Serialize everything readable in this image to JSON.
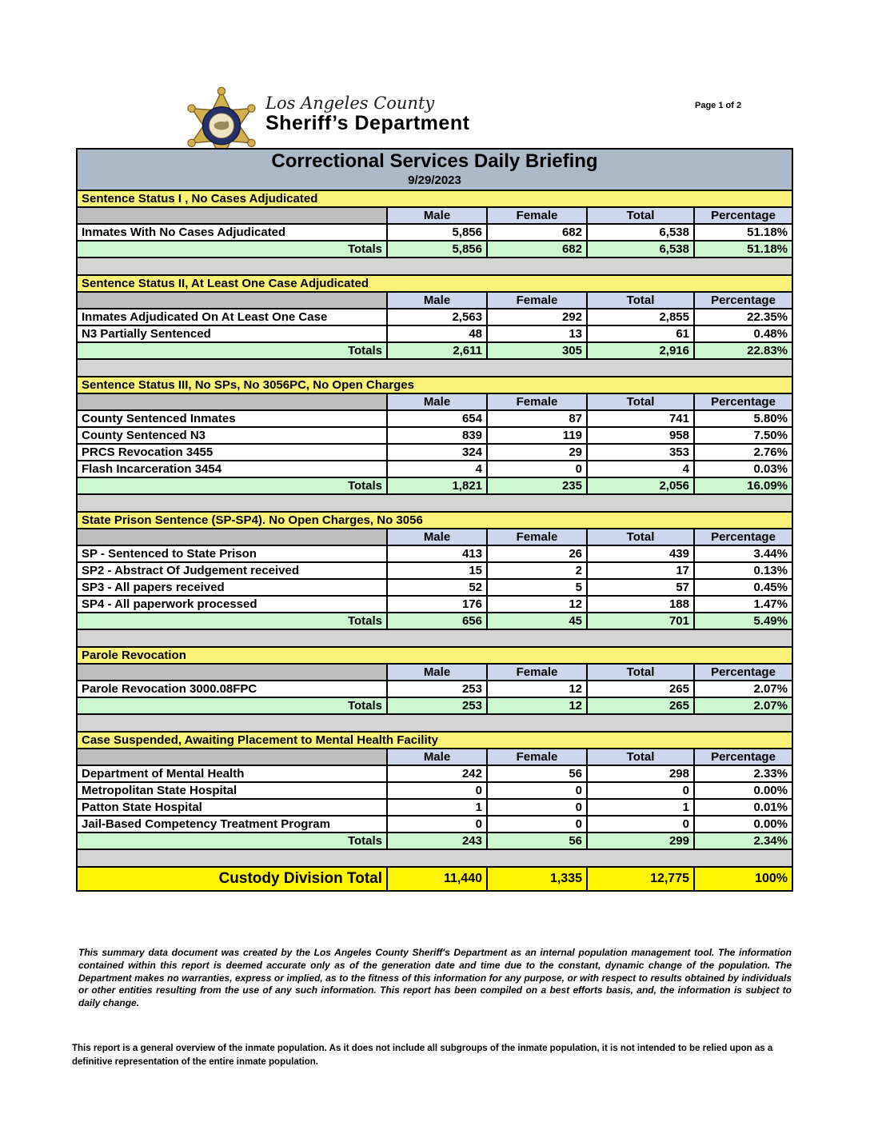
{
  "page": {
    "page_label": "Page 1 of 2"
  },
  "logo": {
    "line1": "Los Angeles County",
    "line2": "Sheriff’s Department",
    "icon": "sheriff-star-badge"
  },
  "report": {
    "title": "Correctional Services Daily Briefing",
    "date": "9/29/2023"
  },
  "columns": [
    "Male",
    "Female",
    "Total",
    "Percentage"
  ],
  "sections": [
    {
      "title": "Sentence Status I , No Cases Adjudicated",
      "rows": [
        {
          "label": "Inmates With No Cases Adjudicated",
          "values": [
            "5,856",
            "682",
            "6,538",
            "51.18%"
          ]
        }
      ],
      "totals": {
        "label": "Totals",
        "values": [
          "5,856",
          "682",
          "6,538",
          "51.18%"
        ]
      }
    },
    {
      "title": "Sentence Status II, At Least One Case Adjudicated",
      "rows": [
        {
          "label": "Inmates Adjudicated On At Least One Case",
          "values": [
            "2,563",
            "292",
            "2,855",
            "22.35%"
          ]
        },
        {
          "label": "N3 Partially Sentenced",
          "values": [
            "48",
            "13",
            "61",
            "0.48%"
          ]
        }
      ],
      "totals": {
        "label": "Totals",
        "values": [
          "2,611",
          "305",
          "2,916",
          "22.83%"
        ]
      }
    },
    {
      "title": "Sentence Status III, No SPs, No 3056PC, No Open Charges",
      "rows": [
        {
          "label": "County Sentenced Inmates",
          "values": [
            "654",
            "87",
            "741",
            "5.80%"
          ]
        },
        {
          "label": "County Sentenced N3",
          "values": [
            "839",
            "119",
            "958",
            "7.50%"
          ]
        },
        {
          "label": "PRCS Revocation 3455",
          "values": [
            "324",
            "29",
            "353",
            "2.76%"
          ]
        },
        {
          "label": "Flash Incarceration 3454",
          "values": [
            "4",
            "0",
            "4",
            "0.03%"
          ]
        }
      ],
      "totals": {
        "label": "Totals",
        "values": [
          "1,821",
          "235",
          "2,056",
          "16.09%"
        ]
      }
    },
    {
      "title": "State Prison Sentence (SP-SP4). No Open Charges, No 3056",
      "rows": [
        {
          "label": "SP - Sentenced to State Prison",
          "values": [
            "413",
            "26",
            "439",
            "3.44%"
          ]
        },
        {
          "label": "SP2 - Abstract Of Judgement received",
          "values": [
            "15",
            "2",
            "17",
            "0.13%"
          ]
        },
        {
          "label": "SP3 - All papers received",
          "values": [
            "52",
            "5",
            "57",
            "0.45%"
          ]
        },
        {
          "label": "SP4 - All paperwork processed",
          "values": [
            "176",
            "12",
            "188",
            "1.47%"
          ]
        }
      ],
      "totals": {
        "label": "Totals",
        "values": [
          "656",
          "45",
          "701",
          "5.49%"
        ]
      }
    },
    {
      "title": "Parole Revocation",
      "rows": [
        {
          "label": "Parole Revocation 3000.08FPC",
          "values": [
            "253",
            "12",
            "265",
            "2.07%"
          ]
        }
      ],
      "totals": {
        "label": "Totals",
        "values": [
          "253",
          "12",
          "265",
          "2.07%"
        ]
      }
    },
    {
      "title": "Case Suspended, Awaiting Placement to Mental Health Facility",
      "rows": [
        {
          "label": "Department of Mental Health",
          "values": [
            "242",
            "56",
            "298",
            "2.33%"
          ]
        },
        {
          "label": "Metropolitan State Hospital",
          "values": [
            "0",
            "0",
            "0",
            "0.00%"
          ]
        },
        {
          "label": "Patton State Hospital",
          "values": [
            "1",
            "0",
            "1",
            "0.01%"
          ]
        },
        {
          "label": "Jail-Based Competency Treatment Program",
          "values": [
            "0",
            "0",
            "0",
            "0.00%"
          ]
        }
      ],
      "totals": {
        "label": "Totals",
        "values": [
          "243",
          "56",
          "299",
          "2.34%"
        ]
      }
    }
  ],
  "grand_total": {
    "label": "Custody Division Total",
    "values": [
      "11,440",
      "1,335",
      "12,775",
      "100%"
    ]
  },
  "disclaimer": "This summary data document was created by the Los Angeles County Sheriff's Department as an internal population management tool.  The information contained within this report is deemed accurate only as of the generation date and time due to the constant, dynamic change of the population.  The Department makes no warranties, express or implied, as to the fitness of this information for any purpose, or with respect to results obtained by individuals or other entities resulting from the use of any such information.  This report has been compiled on a best efforts basis, and, the information is subject to daily change.",
  "footnote": "This report is a general overview of the inmate population.  As it does not include all subgroups of the inmate population, it is not intended to be relied upon as a definitive representation of the entire inmate population.",
  "colors": {
    "titlebar_bg": "#ACB9C9",
    "section_header_bg": "#FAF378",
    "column_header_bg": "#CCD6EC",
    "totals_bg": "#CDF7CE",
    "spacer_bg": "#BFBFBF",
    "gap_bg": "#D4D4D4",
    "grand_total_bg": "#FEF502",
    "badge_gold": "#D2AF4F",
    "badge_ring": "#25306B"
  }
}
